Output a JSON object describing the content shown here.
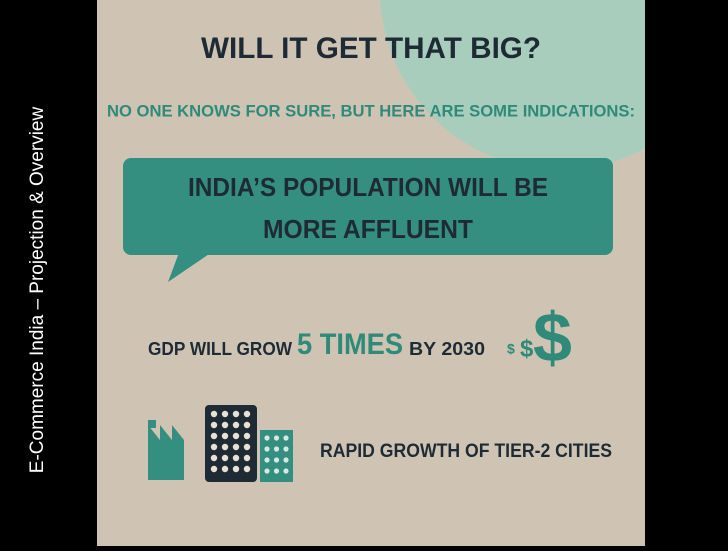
{
  "sidebar": {
    "title": "E-Commerce India – Projection & Overview"
  },
  "infographic": {
    "heading": "WILL IT GET THAT BIG?",
    "subheading": "NO ONE KNOWS FOR SURE, BUT HERE ARE SOME INDICATIONS:",
    "callout": {
      "lines": [
        "INDIA’S POPULATION WILL BE",
        "MORE AFFLUENT"
      ]
    },
    "gdp": {
      "before": "GDP WILL GROW",
      "highlight": "5 TIMES",
      "after": "BY 2030",
      "icon_symbol": "$"
    },
    "cities": {
      "text": "RAPID GROWTH OF TIER-2 CITIES"
    }
  }
}
